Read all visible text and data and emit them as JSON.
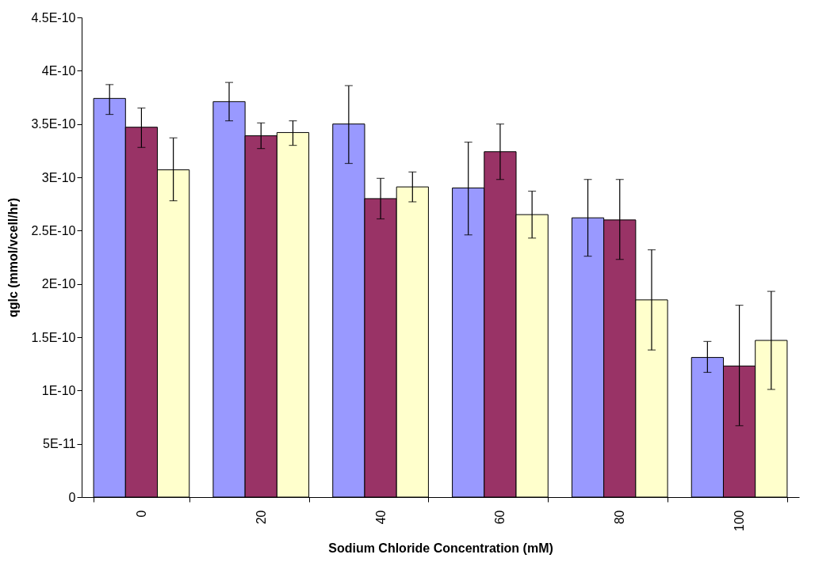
{
  "chart_data": {
    "type": "bar",
    "xlabel": "Sodium Chloride Concentration (mM)",
    "ylabel": "qglc (mmol/vcell/hr)",
    "categories": [
      "0",
      "20",
      "40",
      "60",
      "80",
      "100"
    ],
    "series": [
      {
        "color": "#9999ff",
        "values": [
          3.74e-10,
          3.71e-10,
          3.5e-10,
          2.9e-10,
          2.62e-10,
          1.31e-10
        ],
        "errors": [
          [
            3.59e-10,
            3.87e-10
          ],
          [
            3.53e-10,
            3.89e-10
          ],
          [
            3.13e-10,
            3.86e-10
          ],
          [
            2.46e-10,
            3.33e-10
          ],
          [
            2.26e-10,
            2.98e-10
          ],
          [
            1.17e-10,
            1.46e-10
          ]
        ]
      },
      {
        "color": "#993366",
        "values": [
          3.47e-10,
          3.39e-10,
          2.8e-10,
          3.24e-10,
          2.6e-10,
          1.23e-10
        ],
        "errors": [
          [
            3.28e-10,
            3.65e-10
          ],
          [
            3.27e-10,
            3.51e-10
          ],
          [
            2.61e-10,
            2.99e-10
          ],
          [
            2.98e-10,
            3.5e-10
          ],
          [
            2.23e-10,
            2.98e-10
          ],
          [
            6.7e-11,
            1.8e-10
          ]
        ]
      },
      {
        "color": "#ffffcc",
        "values": [
          3.07e-10,
          3.42e-10,
          2.91e-10,
          2.65e-10,
          1.85e-10,
          1.47e-10
        ],
        "errors": [
          [
            2.78e-10,
            3.37e-10
          ],
          [
            3.3e-10,
            3.53e-10
          ],
          [
            2.77e-10,
            3.05e-10
          ],
          [
            2.43e-10,
            2.87e-10
          ],
          [
            1.38e-10,
            2.32e-10
          ],
          [
            1.01e-10,
            1.93e-10
          ]
        ]
      }
    ],
    "ylim": [
      0,
      4.5e-10
    ],
    "yticks": [
      0,
      {
        "value": 5e-11,
        "label": "5E-11"
      },
      {
        "value": 1e-10,
        "label": "1E-10"
      },
      {
        "value": 1.5e-10,
        "label": "1.5E-10"
      },
      {
        "value": 2e-10,
        "label": "2E-10"
      },
      {
        "value": 2.5e-10,
        "label": "2.5E-10"
      },
      {
        "value": 3e-10,
        "label": "3E-10"
      },
      {
        "value": 3.5e-10,
        "label": "3.5E-10"
      },
      {
        "value": 4e-10,
        "label": "4E-10"
      },
      {
        "value": 4.5e-10,
        "label": "4.5E-10"
      }
    ],
    "grid": false,
    "legend": false
  }
}
